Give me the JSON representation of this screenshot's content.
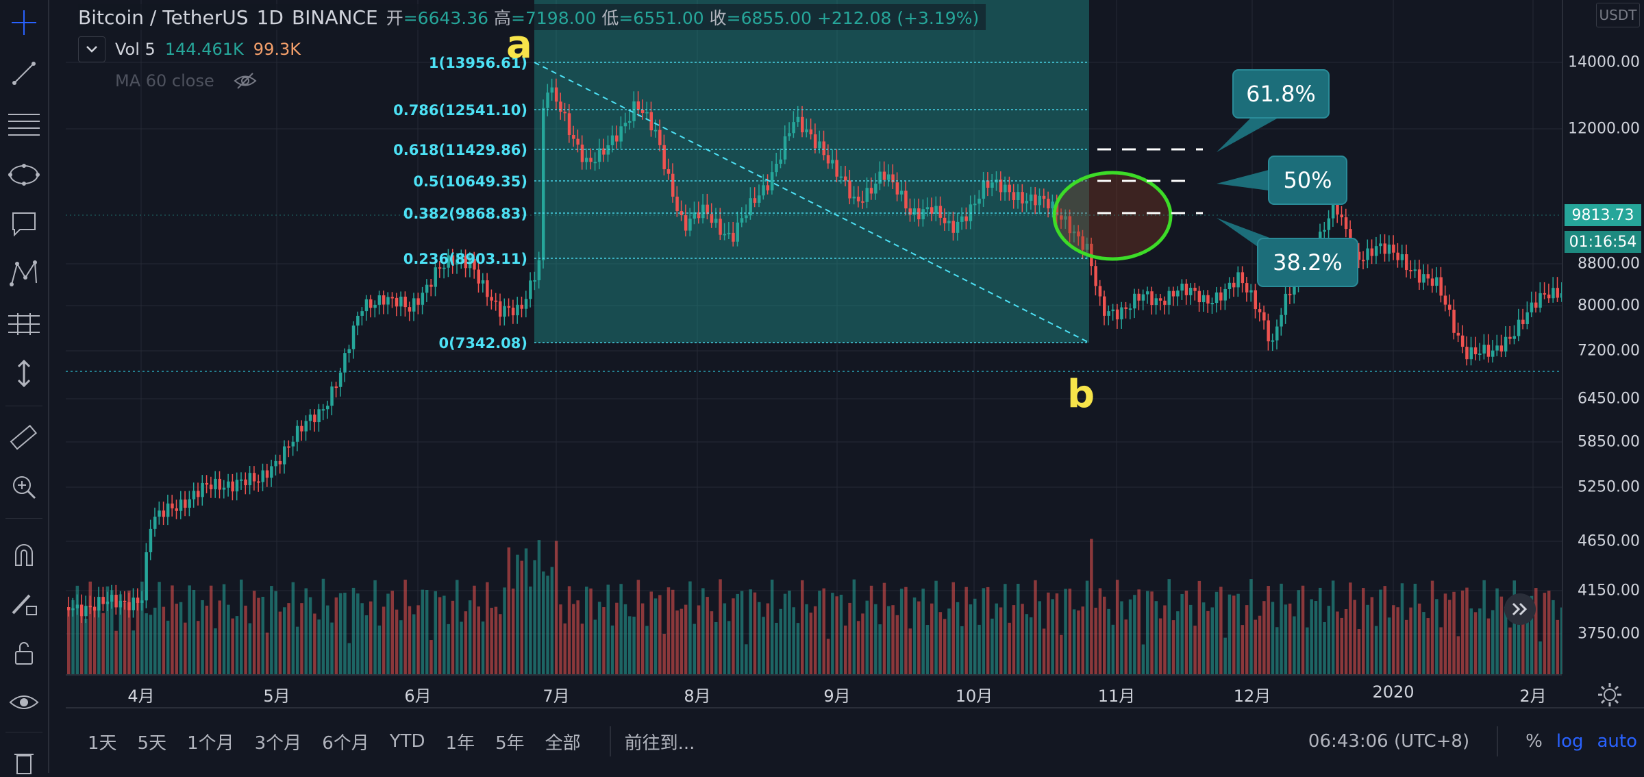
{
  "legend": {
    "symbol": "Bitcoin / TetherUS",
    "interval": "1D",
    "exchange": "BINANCE",
    "open_label": "开",
    "open": "=6643.36",
    "high_label": "高",
    "high": "=7198.00",
    "low_label": "低",
    "low": "=6551.00",
    "close_label": "收",
    "close": "=6855.00",
    "change": "+212.08 (+3.19%)"
  },
  "volume_legend": {
    "name": "Vol 5",
    "value1": "144.461K",
    "value2": "99.3K"
  },
  "ma_legend": {
    "name": "MA 60 close"
  },
  "price_axis": {
    "currency": "USDT",
    "ticks": [
      "14000.00",
      "12000.00",
      "8800.00",
      "8000.00",
      "7200.00",
      "6450.00",
      "5850.00",
      "5250.00",
      "4650.00",
      "4150.00",
      "3750.00"
    ],
    "last_price": "9813.73",
    "countdown": "01:16:54"
  },
  "time_axis": {
    "ticks": [
      "4月",
      "5月",
      "6月",
      "7月",
      "8月",
      "9月",
      "10月",
      "11月",
      "12月",
      "2020",
      "2月"
    ]
  },
  "fib": {
    "levels": [
      "1(13956.61)",
      "0.786(12541.10)",
      "0.618(11429.86)",
      "0.5(10649.35)",
      "0.382(9868.83)",
      "0.236(8903.11)",
      "0(7342.08)"
    ],
    "point_a": "a",
    "point_b": "b"
  },
  "callouts": [
    "61.8%",
    "50%",
    "38.2%"
  ],
  "bottom_bar": {
    "ranges": [
      "1天",
      "5天",
      "1个月",
      "3个月",
      "6个月",
      "YTD",
      "1年",
      "5年",
      "全部"
    ],
    "goto": "前往到...",
    "clock": "06:43:06 (UTC+8)",
    "percent": "%",
    "log": "log",
    "auto": "auto"
  },
  "colors": {
    "up": "#26a69a",
    "down": "#ef5350",
    "fib": "#4de1f5",
    "callout": "#1c6e7a",
    "circle": "#3ddc28",
    "ab": "#f7e44a"
  }
}
